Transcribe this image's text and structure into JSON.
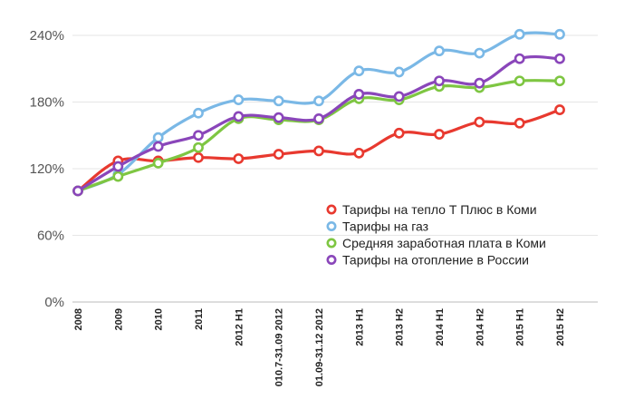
{
  "chart_data": {
    "type": "line",
    "categories": [
      "2008",
      "2009",
      "2010",
      "2011",
      "2012 H1",
      "010.7-31.09 2012",
      "01.09-31.12 2012",
      "2013 H1",
      "2013 H2",
      "2014 H1",
      "2014 H2",
      "2015 H1",
      "2015 H2"
    ],
    "y_tick_labels": [
      "0%",
      "60%",
      "120%",
      "180%",
      "240%"
    ],
    "y_ticks": [
      0,
      60,
      120,
      180,
      240
    ],
    "ylim": [
      0,
      240
    ],
    "grid": true,
    "legend_position": "right",
    "series": [
      {
        "name": "Тарифы на тепло Т Плюс в Коми",
        "color": "#e8392f",
        "values": [
          100,
          127,
          127,
          130,
          129,
          133,
          136,
          134,
          152,
          151,
          162,
          161,
          173
        ]
      },
      {
        "name": "Тарифы на газ",
        "color": "#7ab8e6",
        "values": [
          100,
          115,
          148,
          170,
          182,
          181,
          181,
          208,
          207,
          226,
          224,
          241,
          241
        ]
      },
      {
        "name": "Средняя заработная плата в Коми",
        "color": "#7ec642",
        "values": [
          100,
          113,
          125,
          139,
          165,
          164,
          164,
          183,
          182,
          194,
          193,
          199,
          199
        ]
      },
      {
        "name": "Тарифы на отопление в России",
        "color": "#8a46ba",
        "values": [
          100,
          122,
          140,
          150,
          167,
          166,
          165,
          187,
          185,
          199,
          197,
          219,
          219
        ]
      }
    ]
  }
}
